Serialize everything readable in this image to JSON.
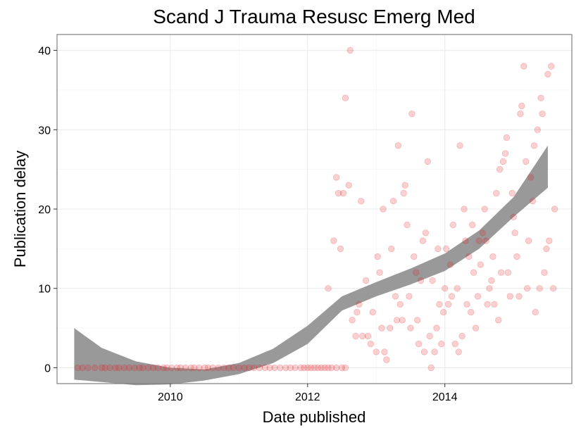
{
  "chart_data": {
    "type": "scatter",
    "title": "Scand J Trauma Resusc Emerg Med",
    "xlabel": "Date published",
    "ylabel": "Publication delay",
    "x_unit": "year",
    "xlim": [
      2008.35,
      2015.85
    ],
    "ylim": [
      -2,
      42
    ],
    "x_ticks": [
      2010,
      2012,
      2014
    ],
    "y_ticks": [
      0,
      10,
      20,
      30,
      40
    ],
    "grid": true,
    "point_color": "#e8191c",
    "point_alpha": 0.2,
    "smooth": {
      "type": "loess confidence band",
      "color": "#999999",
      "x": [
        2008.6,
        2009.0,
        2009.5,
        2010.0,
        2010.5,
        2011.0,
        2011.5,
        2012.0,
        2012.5,
        2013.0,
        2013.5,
        2014.0,
        2014.5,
        2015.0,
        2015.5
      ],
      "lower": [
        -1.5,
        -1.8,
        -2.2,
        -2.1,
        -1.6,
        -0.8,
        0.6,
        3.0,
        7.2,
        9.0,
        10.5,
        12.2,
        15.0,
        19.0,
        22.7
      ],
      "upper": [
        5.0,
        2.5,
        0.8,
        0.0,
        -0.2,
        0.6,
        2.4,
        5.3,
        9.0,
        10.8,
        12.5,
        14.4,
        17.3,
        21.5,
        28.0
      ]
    },
    "series": [
      {
        "points": [
          [
            2008.65,
            0
          ],
          [
            2008.72,
            0
          ],
          [
            2008.8,
            0
          ],
          [
            2008.9,
            0
          ],
          [
            2009.0,
            0
          ],
          [
            2009.05,
            0
          ],
          [
            2009.12,
            0
          ],
          [
            2009.2,
            0
          ],
          [
            2009.25,
            0
          ],
          [
            2009.33,
            0
          ],
          [
            2009.4,
            0
          ],
          [
            2009.48,
            0
          ],
          [
            2009.55,
            0
          ],
          [
            2009.6,
            0
          ],
          [
            2009.68,
            0
          ],
          [
            2009.75,
            0
          ],
          [
            2009.82,
            0
          ],
          [
            2009.9,
            0
          ],
          [
            2009.95,
            0
          ],
          [
            2010.02,
            0
          ],
          [
            2010.1,
            0
          ],
          [
            2010.15,
            0
          ],
          [
            2010.22,
            0
          ],
          [
            2010.3,
            0
          ],
          [
            2010.35,
            0
          ],
          [
            2010.42,
            0
          ],
          [
            2010.5,
            0
          ],
          [
            2010.55,
            0
          ],
          [
            2010.62,
            0
          ],
          [
            2010.7,
            0
          ],
          [
            2010.78,
            0
          ],
          [
            2010.85,
            0
          ],
          [
            2010.92,
            0
          ],
          [
            2011.0,
            0
          ],
          [
            2011.08,
            0
          ],
          [
            2011.15,
            0
          ],
          [
            2011.22,
            0
          ],
          [
            2011.3,
            0
          ],
          [
            2011.38,
            0
          ],
          [
            2011.45,
            0
          ],
          [
            2011.52,
            0
          ],
          [
            2011.6,
            0
          ],
          [
            2011.68,
            0
          ],
          [
            2011.75,
            0
          ],
          [
            2011.82,
            0
          ],
          [
            2011.9,
            0
          ],
          [
            2011.95,
            0
          ],
          [
            2012.0,
            0
          ],
          [
            2012.05,
            0
          ],
          [
            2012.1,
            0
          ],
          [
            2012.15,
            0
          ],
          [
            2012.2,
            0
          ],
          [
            2012.25,
            0
          ],
          [
            2012.3,
            0
          ],
          [
            2012.35,
            0
          ],
          [
            2012.42,
            0
          ],
          [
            2012.5,
            0
          ],
          [
            2012.55,
            0
          ],
          [
            2012.3,
            10
          ],
          [
            2012.38,
            16
          ],
          [
            2012.42,
            24
          ],
          [
            2012.45,
            22
          ],
          [
            2012.48,
            15
          ],
          [
            2012.52,
            22
          ],
          [
            2012.55,
            34
          ],
          [
            2012.6,
            23
          ],
          [
            2012.62,
            40
          ],
          [
            2012.65,
            6
          ],
          [
            2012.7,
            4
          ],
          [
            2012.72,
            7
          ],
          [
            2012.75,
            8
          ],
          [
            2012.78,
            21
          ],
          [
            2012.8,
            4
          ],
          [
            2012.85,
            11
          ],
          [
            2012.88,
            4
          ],
          [
            2012.92,
            3
          ],
          [
            2012.95,
            7
          ],
          [
            2013.0,
            2
          ],
          [
            2013.02,
            14
          ],
          [
            2013.05,
            12
          ],
          [
            2013.08,
            5
          ],
          [
            2013.1,
            20
          ],
          [
            2013.12,
            2
          ],
          [
            2013.15,
            1
          ],
          [
            2013.2,
            5
          ],
          [
            2013.22,
            15
          ],
          [
            2013.25,
            21
          ],
          [
            2013.28,
            9
          ],
          [
            2013.3,
            6
          ],
          [
            2013.32,
            28
          ],
          [
            2013.35,
            8
          ],
          [
            2013.38,
            6
          ],
          [
            2013.4,
            22
          ],
          [
            2013.42,
            23
          ],
          [
            2013.45,
            18
          ],
          [
            2013.48,
            9
          ],
          [
            2013.5,
            5
          ],
          [
            2013.52,
            32
          ],
          [
            2013.55,
            14
          ],
          [
            2013.58,
            12
          ],
          [
            2013.6,
            6
          ],
          [
            2013.62,
            3
          ],
          [
            2013.65,
            11
          ],
          [
            2013.68,
            16
          ],
          [
            2013.7,
            2
          ],
          [
            2013.72,
            17
          ],
          [
            2013.75,
            26
          ],
          [
            2013.78,
            4
          ],
          [
            2013.8,
            0
          ],
          [
            2013.82,
            11
          ],
          [
            2013.85,
            2
          ],
          [
            2013.88,
            5
          ],
          [
            2013.9,
            15
          ],
          [
            2013.92,
            8
          ],
          [
            2013.95,
            3
          ],
          [
            2013.98,
            7
          ],
          [
            2014.0,
            10
          ],
          [
            2014.02,
            15
          ],
          [
            2014.05,
            8
          ],
          [
            2014.08,
            13
          ],
          [
            2014.1,
            9
          ],
          [
            2014.12,
            18
          ],
          [
            2014.15,
            3
          ],
          [
            2014.18,
            10
          ],
          [
            2014.2,
            2
          ],
          [
            2014.22,
            28
          ],
          [
            2014.25,
            4
          ],
          [
            2014.28,
            20
          ],
          [
            2014.3,
            16
          ],
          [
            2014.32,
            8
          ],
          [
            2014.35,
            14
          ],
          [
            2014.38,
            7
          ],
          [
            2014.4,
            18
          ],
          [
            2014.42,
            12
          ],
          [
            2014.45,
            5
          ],
          [
            2014.48,
            9
          ],
          [
            2014.5,
            16
          ],
          [
            2014.52,
            13
          ],
          [
            2014.55,
            17
          ],
          [
            2014.58,
            20
          ],
          [
            2014.6,
            16
          ],
          [
            2014.62,
            8
          ],
          [
            2014.65,
            10
          ],
          [
            2014.68,
            11
          ],
          [
            2014.7,
            14
          ],
          [
            2014.72,
            8
          ],
          [
            2014.75,
            22
          ],
          [
            2014.78,
            6
          ],
          [
            2014.8,
            25
          ],
          [
            2014.82,
            12
          ],
          [
            2014.85,
            26
          ],
          [
            2014.88,
            27
          ],
          [
            2014.9,
            29
          ],
          [
            2014.92,
            12
          ],
          [
            2014.95,
            9
          ],
          [
            2014.98,
            22
          ],
          [
            2015.0,
            19
          ],
          [
            2015.02,
            17
          ],
          [
            2015.05,
            14
          ],
          [
            2015.08,
            9
          ],
          [
            2015.1,
            32
          ],
          [
            2015.12,
            33
          ],
          [
            2015.15,
            38
          ],
          [
            2015.18,
            26
          ],
          [
            2015.2,
            10
          ],
          [
            2015.22,
            16
          ],
          [
            2015.25,
            24
          ],
          [
            2015.28,
            21
          ],
          [
            2015.3,
            28
          ],
          [
            2015.32,
            7
          ],
          [
            2015.35,
            30
          ],
          [
            2015.38,
            10
          ],
          [
            2015.4,
            34
          ],
          [
            2015.42,
            32
          ],
          [
            2015.45,
            12
          ],
          [
            2015.48,
            15
          ],
          [
            2015.5,
            37
          ],
          [
            2015.52,
            16
          ],
          [
            2015.55,
            38
          ],
          [
            2015.58,
            10
          ],
          [
            2015.6,
            20
          ]
        ]
      }
    ]
  }
}
